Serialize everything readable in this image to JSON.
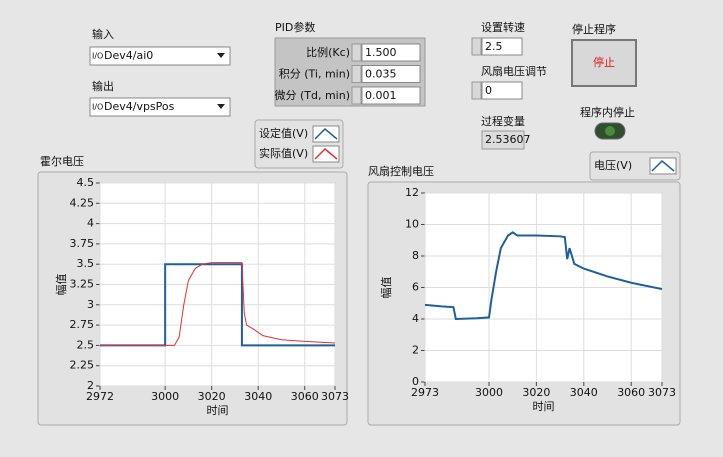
{
  "io": {
    "input_label": "输入",
    "input_value": "Dev4/ai0",
    "output_label": "输出",
    "output_value": "Dev4/vpsPos"
  },
  "pid": {
    "title": "PID参数",
    "rows": [
      {
        "label": "比例(Kc)",
        "value": "1.500"
      },
      {
        "label": "积分 (Ti, min)",
        "value": "0.035"
      },
      {
        "label": "微分 (Td, min)",
        "value": "0.001"
      }
    ]
  },
  "speed": {
    "label": "设置转速",
    "value": "2.5"
  },
  "fan": {
    "label": "风扇电压调节",
    "value": "0"
  },
  "process": {
    "label": "过程变量",
    "value": "2.53607"
  },
  "stop": {
    "label": "停止程序",
    "button": "停止"
  },
  "internal_stop": {
    "label": "程序内停止"
  },
  "chart_data": [
    {
      "type": "line",
      "title": "霍尔电压",
      "xlabel": "时间",
      "ylabel": "幅值",
      "xlim": [
        2972,
        3073
      ],
      "xticks": [
        2972,
        3000,
        3020,
        3040,
        3060,
        3073
      ],
      "ylim": [
        2,
        4.5
      ],
      "yticks": [
        2,
        2.25,
        2.5,
        2.75,
        3,
        3.25,
        3.5,
        3.75,
        4,
        4.25,
        4.5
      ],
      "grid": true,
      "series": [
        {
          "name": "设定值(V)",
          "color": "#1f5f9f",
          "x": [
            2972,
            3000,
            3000,
            3033,
            3033,
            3073
          ],
          "values": [
            2.5,
            2.5,
            3.5,
            3.5,
            2.5,
            2.5
          ]
        },
        {
          "name": "实际值(V)",
          "color": "#e03030",
          "x": [
            2972,
            3004,
            3006,
            3008,
            3010,
            3013,
            3016,
            3020,
            3033,
            3034,
            3035,
            3038,
            3042,
            3050,
            3060,
            3073
          ],
          "values": [
            2.5,
            2.5,
            2.6,
            3.0,
            3.3,
            3.45,
            3.5,
            3.52,
            3.52,
            2.9,
            2.75,
            2.7,
            2.62,
            2.57,
            2.55,
            2.53
          ]
        }
      ]
    },
    {
      "type": "line",
      "title": "风扇控制电压",
      "xlabel": "时间",
      "ylabel": "幅值",
      "xlim": [
        2973,
        3073
      ],
      "xticks": [
        2973,
        3000,
        3020,
        3040,
        3060,
        3073
      ],
      "ylim": [
        0,
        12
      ],
      "yticks": [
        0,
        2,
        4,
        6,
        8,
        10,
        12
      ],
      "grid": true,
      "series": [
        {
          "name": "电压(V)",
          "color": "#1f5f9f",
          "x": [
            2973,
            2980,
            2985,
            2986,
            2995,
            3000,
            3001,
            3003,
            3005,
            3008,
            3010,
            3012,
            3020,
            3030,
            3032,
            3033,
            3034,
            3036,
            3040,
            3050,
            3060,
            3073
          ],
          "values": [
            4.9,
            4.8,
            4.75,
            4.0,
            4.05,
            4.1,
            5.2,
            7.0,
            8.5,
            9.3,
            9.5,
            9.3,
            9.3,
            9.25,
            9.2,
            7.8,
            8.5,
            7.5,
            7.2,
            6.7,
            6.3,
            5.9
          ]
        }
      ]
    }
  ]
}
